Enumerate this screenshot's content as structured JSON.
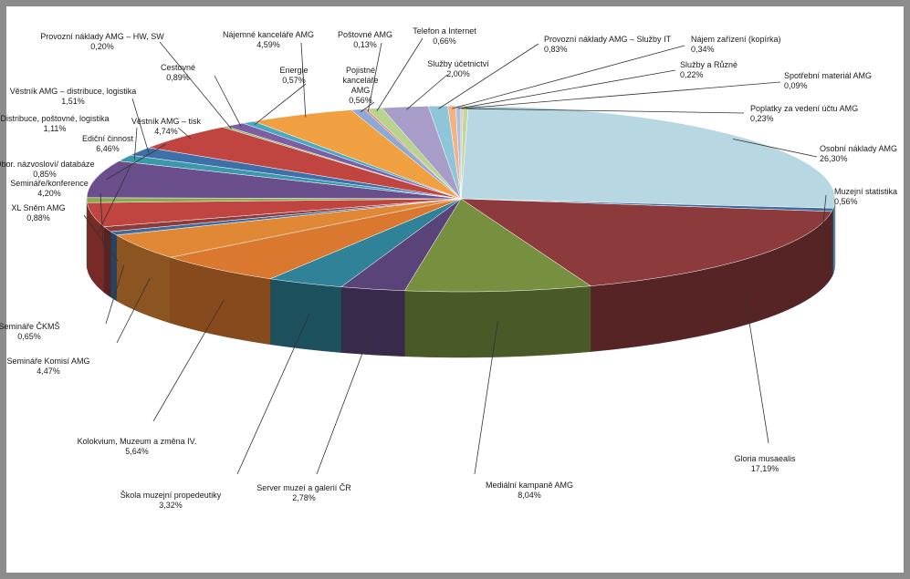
{
  "chart_data": {
    "type": "pie",
    "title": "",
    "legend": "none",
    "slices": [
      {
        "label": "Osobní náklady AMG",
        "value": 26.3,
        "value_label": "26,30%",
        "color": "#b7d7e3"
      },
      {
        "label": "Muzejní statistika",
        "value": 0.56,
        "value_label": "0,56%",
        "color": "#3f6c9c"
      },
      {
        "label": "Gloria musaealis",
        "value": 17.19,
        "value_label": "17,19%",
        "color": "#8c3a3b"
      },
      {
        "label": "Mediální kampaně AMG",
        "value": 8.04,
        "value_label": "8,04%",
        "color": "#76903f"
      },
      {
        "label": "Server muzeí a galerií ČR",
        "value": 2.78,
        "value_label": "2,78%",
        "color": "#5a4378"
      },
      {
        "label": "Škola muzejní propedeutiky",
        "value": 3.32,
        "value_label": "3,32%",
        "color": "#2f8297"
      },
      {
        "label": "Kolokvium, Muzeum a změna IV.",
        "value": 5.64,
        "value_label": "5,64%",
        "color": "#d9782e"
      },
      {
        "label": "Semináře Komisí AMG",
        "value": 4.47,
        "value_label": "4,47%",
        "color": "#e08836"
      },
      {
        "label": "Semináře ČKMŠ",
        "value": 0.65,
        "value_label": "0,65%",
        "color": "#3f6c9c"
      },
      {
        "label": "XL Sněm AMG",
        "value": 0.88,
        "value_label": "0,88%",
        "color": "#8c3a3b"
      },
      {
        "label": "Semináře/konference",
        "value": 4.2,
        "value_label": "4,20%",
        "color": "#c0443f"
      },
      {
        "label": "Obor. názvosloví/ databáze",
        "value": 0.85,
        "value_label": "0,85%",
        "color": "#8aa84e"
      },
      {
        "label": "Ediční činnost",
        "value": 6.46,
        "value_label": "6,46%",
        "color": "#6a4f8c"
      },
      {
        "label": "Distribuce, poštovné, logistika",
        "value": 1.11,
        "value_label": "1,11%",
        "color": "#3a98ad"
      },
      {
        "label": "Věstník AMG – distribuce, logistika",
        "value": 1.51,
        "value_label": "1,51%",
        "color": "#3e6fa8"
      },
      {
        "label": "Věstník AMG – tisk",
        "value": 4.74,
        "value_label": "4,74%",
        "color": "#c0443f"
      },
      {
        "label": "Provozní náklady AMG – HW, SW",
        "value": 0.2,
        "value_label": "0,20%",
        "color": "#8cb14f"
      },
      {
        "label": "Cestovné",
        "value": 0.89,
        "value_label": "0,89%",
        "color": "#7b5ea3"
      },
      {
        "label": "Energie",
        "value": 0.57,
        "value_label": "0,57%",
        "color": "#4aa8c0"
      },
      {
        "label": "Nájemné kanceláře AMG",
        "value": 4.59,
        "value_label": "4,59%",
        "color": "#f0a040"
      },
      {
        "label": "Pojistné kanceláře AMG",
        "value": 0.56,
        "value_label": "0,56%",
        "color": "#8ea8d4"
      },
      {
        "label": "Poštovné AMG",
        "value": 0.13,
        "value_label": "0,13%",
        "color": "#dd8a86"
      },
      {
        "label": "Telefon a Internet",
        "value": 0.66,
        "value_label": "0,66%",
        "color": "#b8d38e"
      },
      {
        "label": "Služby účetnictví",
        "value": 2.0,
        "value_label": "2,00%",
        "color": "#a89cc8"
      },
      {
        "label": "Provozní náklady AMG – Služby IT",
        "value": 0.83,
        "value_label": "0,83%",
        "color": "#8fc5d8"
      },
      {
        "label": "Nájem zařízení (kopírka)",
        "value": 0.34,
        "value_label": "0,34%",
        "color": "#f4b183"
      },
      {
        "label": "Služby a Různé",
        "value": 0.22,
        "value_label": "0,22%",
        "color": "#a9c1e0"
      },
      {
        "label": "Spotřební materiál AMG",
        "value": 0.09,
        "value_label": "0,09%",
        "color": "#e6b8b7"
      },
      {
        "label": "Poplatky za vedení účtu AMG",
        "value": 0.23,
        "value_label": "0,23%",
        "color": "#c4d79b"
      }
    ]
  }
}
